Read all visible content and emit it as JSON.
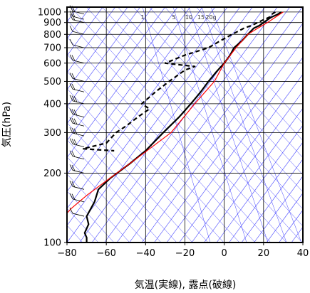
{
  "chart_data": {
    "type": "line",
    "title": "",
    "xlabel": "気温(実線), 露点(破線)",
    "ylabel": "気圧(hPa)",
    "x_ticks": [
      -80,
      -60,
      -40,
      -20,
      0,
      20,
      40
    ],
    "x_tick_labels": [
      "−80",
      "−60",
      "−40",
      "−20",
      "0",
      "20",
      "40"
    ],
    "xlim": [
      -80,
      40
    ],
    "y_scale": "log",
    "ylim": [
      1050,
      100
    ],
    "y_ticks": [
      100,
      200,
      300,
      400,
      500,
      600,
      700,
      800,
      900,
      1000
    ],
    "y_tick_labels": [
      "100",
      "200",
      "300",
      "400",
      "500",
      "600",
      "700",
      "800",
      "900",
      "1000"
    ],
    "mixing_ratio_labels": [
      "1",
      "5",
      "10",
      "15",
      "20g"
    ],
    "colors": {
      "temperature": "#000000",
      "dewpoint": "#000000",
      "parcel": "#ff0000",
      "background_lines": "#4040ff",
      "wind_barbs": "#000000"
    },
    "series": [
      {
        "name": "",
        "style": "solid",
        "points": [
          [
            29,
            1000
          ],
          [
            27,
            975
          ],
          [
            24,
            950
          ],
          [
            22,
            925
          ],
          [
            20,
            900
          ],
          [
            18,
            875
          ],
          [
            15,
            850
          ],
          [
            12,
            800
          ],
          [
            9,
            750
          ],
          [
            5,
            700
          ],
          [
            3,
            650
          ],
          [
            0,
            600
          ],
          [
            -4,
            550
          ],
          [
            -8,
            500
          ],
          [
            -12,
            450
          ],
          [
            -17,
            400
          ],
          [
            -23,
            350
          ],
          [
            -31,
            300
          ],
          [
            -40,
            250
          ],
          [
            -48,
            220
          ],
          [
            -58,
            190
          ],
          [
            -64,
            170
          ],
          [
            -66,
            150
          ],
          [
            -70,
            130
          ],
          [
            -69,
            120
          ],
          [
            -71,
            110
          ],
          [
            -70,
            105
          ],
          [
            -70,
            100
          ]
        ]
      },
      {
        "name": "",
        "style": "dashed",
        "points": [
          [
            26,
            1000
          ],
          [
            24,
            975
          ],
          [
            23,
            950
          ],
          [
            20,
            925
          ],
          [
            17,
            900
          ],
          [
            14,
            875
          ],
          [
            10,
            850
          ],
          [
            4,
            800
          ],
          [
            -2,
            750
          ],
          [
            -8,
            700
          ],
          [
            -20,
            650
          ],
          [
            -30,
            600
          ],
          [
            -15,
            580
          ],
          [
            -20,
            560
          ],
          [
            -28,
            500
          ],
          [
            -35,
            450
          ],
          [
            -42,
            400
          ],
          [
            -38,
            380
          ],
          [
            -44,
            350
          ],
          [
            -50,
            320
          ],
          [
            -55,
            300
          ],
          [
            -60,
            270
          ],
          [
            -72,
            255
          ],
          [
            -56,
            250
          ]
        ]
      },
      {
        "name": "",
        "style": "solid",
        "points": [
          [
            30,
            1000
          ],
          [
            22,
            900
          ],
          [
            17,
            850
          ],
          [
            12,
            800
          ],
          [
            6,
            700
          ],
          [
            0,
            600
          ],
          [
            -5,
            500
          ],
          [
            -15,
            400
          ],
          [
            -27,
            300
          ],
          [
            -45,
            230
          ],
          [
            -62,
            180
          ],
          [
            -70,
            160
          ],
          [
            -78,
            140
          ],
          [
            -85,
            120
          ]
        ]
      }
    ],
    "wind_barbs": [
      {
        "p": 980,
        "speed": 15
      },
      {
        "p": 930,
        "speed": 20
      },
      {
        "p": 900,
        "speed": 15
      },
      {
        "p": 800,
        "speed": 10
      },
      {
        "p": 700,
        "speed": 10
      },
      {
        "p": 600,
        "speed": 20
      },
      {
        "p": 500,
        "speed": 20
      },
      {
        "p": 450,
        "speed": 15
      },
      {
        "p": 400,
        "speed": 25
      },
      {
        "p": 350,
        "speed": 30
      },
      {
        "p": 320,
        "speed": 30
      },
      {
        "p": 290,
        "speed": 25
      },
      {
        "p": 260,
        "speed": 25
      },
      {
        "p": 230,
        "speed": 20
      },
      {
        "p": 200,
        "speed": 20
      },
      {
        "p": 170,
        "speed": 15
      },
      {
        "p": 150,
        "speed": 15
      },
      {
        "p": 130,
        "speed": 10
      }
    ]
  }
}
